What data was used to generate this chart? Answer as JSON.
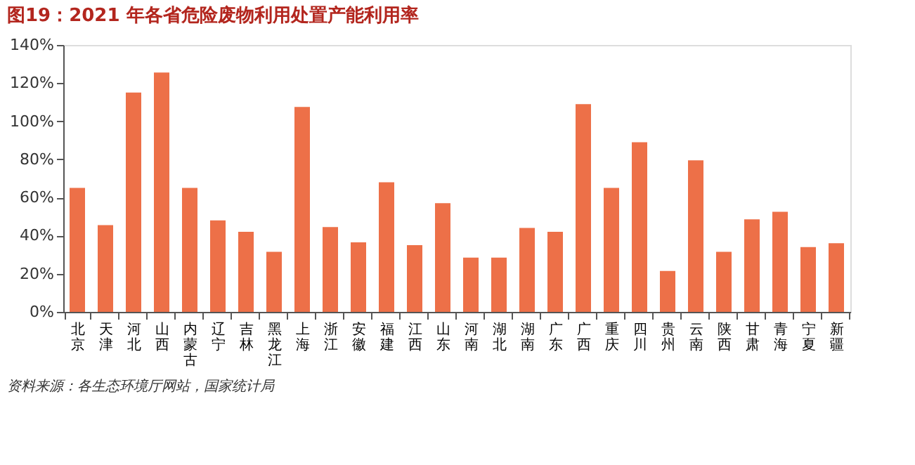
{
  "chart_data": {
    "type": "bar",
    "title": "图19：2021 年各省危险废物利用处置产能利用率",
    "categories": [
      "北京",
      "天津",
      "河北",
      "山西",
      "内蒙古",
      "辽宁",
      "吉林",
      "黑龙江",
      "上海",
      "浙江",
      "安徽",
      "福建",
      "江西",
      "山东",
      "河南",
      "湖北",
      "湖南",
      "广东",
      "广西",
      "重庆",
      "四川",
      "贵州",
      "云南",
      "陕西",
      "甘肃",
      "青海",
      "宁夏",
      "新疆"
    ],
    "values": [
      65,
      45.5,
      115,
      125.5,
      65,
      48,
      42,
      31.5,
      107.5,
      44.5,
      36.5,
      68,
      35,
      57,
      28.5,
      28.5,
      44,
      42,
      109,
      65,
      89,
      21.5,
      79.5,
      31.5,
      48.5,
      52.5,
      34,
      36
    ],
    "color": "#ed7048",
    "ylim": [
      0,
      140
    ],
    "yticks": [
      {
        "value": 0,
        "label": "0%"
      },
      {
        "value": 20,
        "label": "20%"
      },
      {
        "value": 40,
        "label": "40%"
      },
      {
        "value": 60,
        "label": "60%"
      },
      {
        "value": 80,
        "label": "80%"
      },
      {
        "value": 100,
        "label": "100%"
      },
      {
        "value": 120,
        "label": "120%"
      },
      {
        "value": 140,
        "label": "140%"
      }
    ],
    "grid": false,
    "annotations": [
      "资料来源：各生态环境厅网站，国家统计局"
    ]
  }
}
